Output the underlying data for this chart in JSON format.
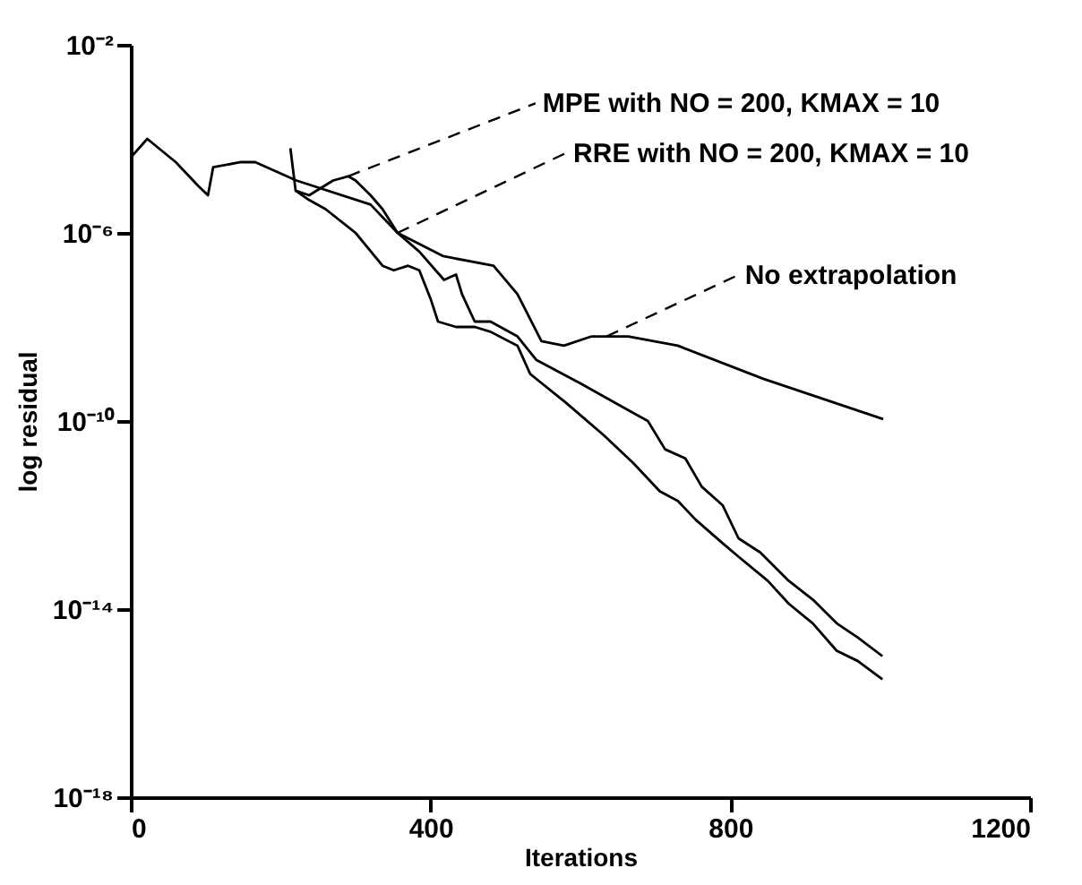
{
  "chart_data": {
    "type": "line",
    "xlabel": "Iterations",
    "ylabel": "log residual",
    "log": true,
    "grid": false,
    "xlim": [
      0,
      1200
    ],
    "xticks": [
      0,
      400,
      800,
      1200
    ],
    "ylim": [
      1e-18,
      0.01
    ],
    "yticks": [
      {
        "value": 0.01,
        "label": "10⁻²"
      },
      {
        "value": 1e-06,
        "label": "10⁻⁶"
      },
      {
        "value": 1e-10,
        "label": "10⁻¹⁰"
      },
      {
        "value": 1e-14,
        "label": "10⁻¹⁴"
      },
      {
        "value": 1e-18,
        "label": "10⁻¹⁸"
      }
    ],
    "series": [
      {
        "color": "#000000",
        "x": [
          213,
          220,
          238,
          270,
          290,
          300,
          320,
          336,
          356,
          385,
          418,
          434,
          442,
          459,
          480,
          516,
          541,
          600,
          656,
          690,
          713,
          740,
          762,
          790,
          811,
          840,
          878,
          910,
          942,
          970,
          1003
        ],
        "values": [
          6.3e-05,
          7.9e-06,
          6.3e-06,
          1.3e-05,
          1.6e-05,
          1.3e-05,
          6.3e-06,
          3.2e-06,
          1e-06,
          4e-07,
          1e-07,
          1.3e-07,
          5e-08,
          1.3e-08,
          1.3e-08,
          6.3e-09,
          2e-09,
          6.3e-10,
          2e-10,
          1e-10,
          2.5e-11,
          1.6e-11,
          4e-12,
          1.6e-12,
          3.2e-13,
          1.6e-13,
          4e-14,
          1.6e-14,
          5e-15,
          2.5e-15,
          1e-15
        ]
      },
      {
        "color": "#000000",
        "x": [
          220,
          238,
          260,
          300,
          336,
          351,
          370,
          385,
          400,
          410,
          434,
          459,
          480,
          516,
          533,
          580,
          631,
          670,
          706,
          730,
          754,
          790,
          811,
          850,
          878,
          910,
          942,
          970,
          1003
        ],
        "values": [
          7.9e-06,
          5e-06,
          3.2e-06,
          1e-06,
          2e-07,
          1.6e-07,
          2e-07,
          1.6e-07,
          4e-08,
          1.3e-08,
          1e-08,
          1e-08,
          7.9e-09,
          4e-09,
          1e-09,
          2.5e-10,
          5e-11,
          1.3e-11,
          3.2e-12,
          2e-12,
          7.9e-13,
          2.5e-13,
          1.3e-13,
          4e-14,
          1.3e-14,
          5e-15,
          1.3e-15,
          7.9e-16,
          3.2e-16
        ]
      },
      {
        "color": "#000000",
        "x": [
          0,
          22,
          60,
          90,
          103,
          110,
          147,
          166,
          221,
          320,
          356,
          417,
          484,
          516,
          548,
          578,
          615,
          664,
          730,
          844,
          1004
        ],
        "values": [
          4e-05,
          0.0001,
          3.2e-05,
          1e-05,
          6.3e-06,
          2.5e-05,
          3.2e-05,
          3.2e-05,
          1.3e-05,
          4e-06,
          1e-06,
          3.2e-07,
          2e-07,
          5e-08,
          5e-09,
          4e-09,
          6.3e-09,
          6.3e-09,
          4e-09,
          7.9e-10,
          1.1e-10
        ]
      }
    ],
    "annotations": [
      {
        "text": "MPE with NO = 200, KMAX = 10",
        "x": 290,
        "y": 1.6e-05
      },
      {
        "text": "RRE with NO = 200, KMAX = 10",
        "x": 356,
        "y": 1e-06
      },
      {
        "text": "No extrapolation",
        "x": 635,
        "y": 6.3e-09
      }
    ]
  }
}
